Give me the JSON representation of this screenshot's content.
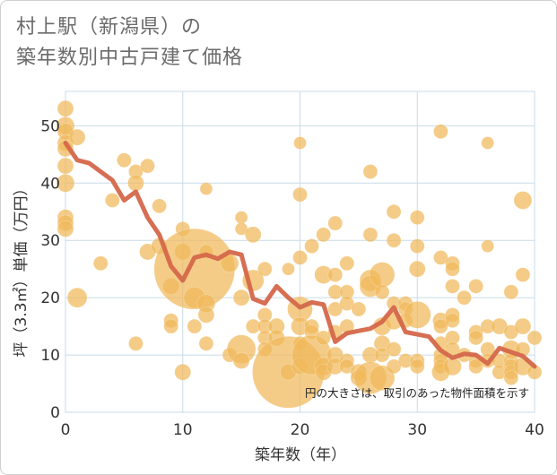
{
  "title_line1": "村上駅（新潟県）の",
  "title_line2": "築年数別中古戸建て価格",
  "chart_data": {
    "type": "scatter",
    "xlabel": "築年数（年）",
    "ylabel": "坪（3.3㎡）単価（万円）",
    "xlim": [
      0,
      40
    ],
    "ylim": [
      0,
      56
    ],
    "x_ticks": [
      0,
      10,
      20,
      30,
      40
    ],
    "y_ticks": [
      0,
      10,
      20,
      30,
      40,
      50
    ],
    "grid": true,
    "note": "円の大きさは、取引のあった物件面積を示す",
    "colors": {
      "bubble": "#f0b85a",
      "line": "#d4674a",
      "grid": "#c9dbe8"
    },
    "points": [
      [
        0,
        53,
        9
      ],
      [
        0,
        50,
        10
      ],
      [
        0,
        49,
        9
      ],
      [
        0,
        47,
        9
      ],
      [
        0,
        46,
        9
      ],
      [
        0,
        43,
        9
      ],
      [
        0,
        40,
        10
      ],
      [
        0,
        34,
        9
      ],
      [
        0,
        33,
        9
      ],
      [
        0,
        32,
        9
      ],
      [
        1,
        48,
        9
      ],
      [
        1,
        20,
        11
      ],
      [
        3,
        26,
        8
      ],
      [
        4,
        37,
        8
      ],
      [
        5,
        44,
        8
      ],
      [
        6,
        42,
        8
      ],
      [
        6,
        40,
        9
      ],
      [
        6,
        12,
        8
      ],
      [
        7,
        43,
        8
      ],
      [
        7,
        28,
        9
      ],
      [
        8,
        36,
        8
      ],
      [
        8,
        29,
        9
      ],
      [
        9,
        22,
        9
      ],
      [
        9,
        16,
        8
      ],
      [
        9,
        15,
        8
      ],
      [
        10,
        32,
        8
      ],
      [
        10,
        28,
        9
      ],
      [
        10,
        7,
        9
      ],
      [
        11,
        25,
        45
      ],
      [
        11,
        20,
        12
      ],
      [
        11,
        15,
        8
      ],
      [
        12,
        39,
        7
      ],
      [
        12,
        28,
        8
      ],
      [
        12,
        19,
        10
      ],
      [
        12,
        17,
        9
      ],
      [
        12,
        12,
        8
      ],
      [
        14,
        26,
        10
      ],
      [
        14,
        10,
        8
      ],
      [
        15,
        34,
        7
      ],
      [
        15,
        32,
        7
      ],
      [
        15,
        20,
        9
      ],
      [
        15,
        11,
        16
      ],
      [
        15,
        9,
        9
      ],
      [
        16,
        31,
        9
      ],
      [
        16,
        23,
        12
      ],
      [
        16,
        15,
        8
      ],
      [
        17,
        25,
        8
      ],
      [
        17,
        17,
        8
      ],
      [
        17,
        15,
        8
      ],
      [
        17,
        13,
        8
      ],
      [
        17,
        11,
        8
      ],
      [
        18,
        15,
        9
      ],
      [
        18,
        13,
        9
      ],
      [
        19,
        25,
        7
      ],
      [
        19,
        7,
        40
      ],
      [
        19,
        7,
        9
      ],
      [
        20,
        47,
        7
      ],
      [
        20,
        38,
        8
      ],
      [
        20,
        27,
        8
      ],
      [
        20,
        18,
        14
      ],
      [
        20,
        15,
        10
      ],
      [
        20,
        12,
        8
      ],
      [
        20,
        8,
        9
      ],
      [
        21,
        29,
        8
      ],
      [
        21,
        15,
        8
      ],
      [
        21,
        14,
        8
      ],
      [
        21,
        10,
        22
      ],
      [
        22,
        24,
        10
      ],
      [
        22,
        31,
        8
      ],
      [
        22,
        13,
        8
      ],
      [
        22,
        8,
        10
      ],
      [
        22,
        7,
        9
      ],
      [
        23,
        33,
        8
      ],
      [
        23,
        24,
        8
      ],
      [
        23,
        21,
        8
      ],
      [
        23,
        18,
        8
      ],
      [
        23,
        14,
        8
      ],
      [
        23,
        10,
        9
      ],
      [
        23,
        8,
        9
      ],
      [
        24,
        26,
        8
      ],
      [
        24,
        21,
        8
      ],
      [
        24,
        19,
        8
      ],
      [
        24,
        15,
        8
      ],
      [
        24,
        9,
        8
      ],
      [
        24,
        8,
        8
      ],
      [
        25,
        18,
        8
      ],
      [
        25,
        7,
        9
      ],
      [
        25,
        6,
        9
      ],
      [
        26,
        42,
        8
      ],
      [
        26,
        31,
        8
      ],
      [
        26,
        23,
        12
      ],
      [
        26,
        22,
        12
      ],
      [
        26,
        10,
        9
      ],
      [
        26,
        6,
        18
      ],
      [
        27,
        24,
        14
      ],
      [
        27,
        21,
        8
      ],
      [
        27,
        15,
        10
      ],
      [
        27,
        12,
        9
      ],
      [
        27,
        10,
        8
      ],
      [
        27,
        6,
        14
      ],
      [
        28,
        35,
        8
      ],
      [
        28,
        30,
        8
      ],
      [
        28,
        19,
        8
      ],
      [
        28,
        16,
        10
      ],
      [
        28,
        11,
        8
      ],
      [
        28,
        8,
        8
      ],
      [
        29,
        19,
        8
      ],
      [
        29,
        18,
        8
      ],
      [
        29,
        16,
        8
      ],
      [
        29,
        9,
        8
      ],
      [
        30,
        34,
        8
      ],
      [
        30,
        29,
        8
      ],
      [
        30,
        25,
        9
      ],
      [
        30,
        17,
        15
      ],
      [
        30,
        9,
        8
      ],
      [
        30,
        8,
        8
      ],
      [
        32,
        49,
        8
      ],
      [
        32,
        27,
        8
      ],
      [
        32,
        16,
        9
      ],
      [
        32,
        15,
        8
      ],
      [
        32,
        12,
        8
      ],
      [
        32,
        10,
        8
      ],
      [
        32,
        9,
        8
      ],
      [
        32,
        8,
        8
      ],
      [
        32,
        7,
        10
      ],
      [
        33,
        26,
        8
      ],
      [
        33,
        25,
        8
      ],
      [
        33,
        22,
        8
      ],
      [
        33,
        17,
        8
      ],
      [
        33,
        16,
        8
      ],
      [
        33,
        13,
        8
      ],
      [
        33,
        11,
        8
      ],
      [
        33,
        8,
        10
      ],
      [
        34,
        20,
        8
      ],
      [
        34,
        10,
        8
      ],
      [
        35,
        22,
        8
      ],
      [
        35,
        14,
        8
      ],
      [
        35,
        13,
        8
      ],
      [
        35,
        9,
        8
      ],
      [
        35,
        8,
        8
      ],
      [
        36,
        47,
        7
      ],
      [
        36,
        29,
        7
      ],
      [
        36,
        15,
        8
      ],
      [
        36,
        11,
        8
      ],
      [
        36,
        9,
        8
      ],
      [
        37,
        15,
        9
      ],
      [
        37,
        9,
        8
      ],
      [
        37,
        7,
        8
      ],
      [
        38,
        21,
        8
      ],
      [
        38,
        14,
        8
      ],
      [
        38,
        11,
        10
      ],
      [
        38,
        9,
        8
      ],
      [
        38,
        8,
        8
      ],
      [
        38,
        7,
        8
      ],
      [
        38,
        6,
        8
      ],
      [
        39,
        37,
        10
      ],
      [
        39,
        24,
        8
      ],
      [
        39,
        15,
        9
      ],
      [
        39,
        11,
        8
      ],
      [
        39,
        8,
        10
      ],
      [
        40,
        13,
        8
      ],
      [
        40,
        7,
        8
      ]
    ],
    "trend": {
      "x": [
        0,
        1,
        2,
        3,
        4,
        5,
        6,
        7,
        8,
        9,
        10,
        11,
        12,
        13,
        14,
        15,
        16,
        17,
        18,
        19,
        20,
        21,
        22,
        23,
        24,
        25,
        26,
        27,
        28,
        29,
        30,
        31,
        32,
        33,
        34,
        35,
        36,
        37,
        38,
        39,
        40
      ],
      "y": [
        47,
        44,
        43.5,
        42,
        40.5,
        37,
        38.5,
        34,
        31,
        25.5,
        23,
        27,
        27.5,
        26.8,
        28,
        27.5,
        19.8,
        19,
        22,
        20,
        18.3,
        19.2,
        18.8,
        12.3,
        13.8,
        14.2,
        14.6,
        15.8,
        18.3,
        14,
        13.6,
        13.2,
        10.8,
        9.5,
        10.2,
        10,
        8.5,
        11.2,
        10.5,
        9.8,
        8
      ]
    }
  }
}
